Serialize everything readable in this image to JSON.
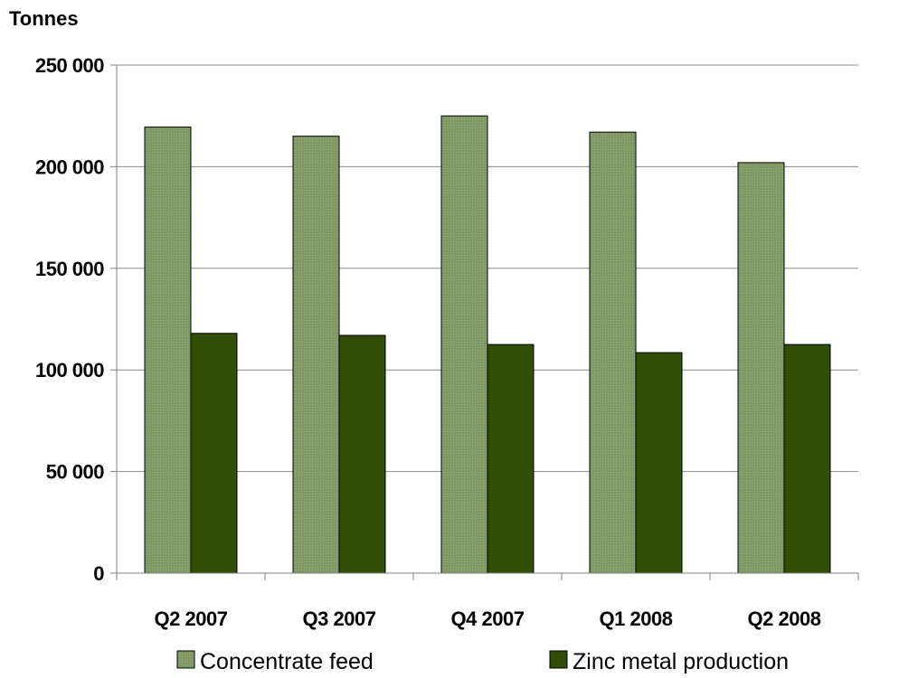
{
  "chart_data": {
    "type": "bar",
    "ylabel": "Tonnes",
    "categories": [
      "Q2 2007",
      "Q3 2007",
      "Q4 2007",
      "Q1 2008",
      "Q2 2008"
    ],
    "series": [
      {
        "name": "Concentrate feed",
        "values": [
          219500,
          215000,
          225000,
          217000,
          202000
        ],
        "color": "#7f9964"
      },
      {
        "name": "Zinc metal production",
        "values": [
          118000,
          117000,
          112500,
          108500,
          112500
        ],
        "color": "#324d05"
      }
    ],
    "ylim": [
      0,
      250000
    ],
    "yticks": [
      0,
      50000,
      100000,
      150000,
      200000,
      250000
    ],
    "ytick_labels": [
      "0",
      "50 000",
      "100 000",
      "150 000",
      "200 000",
      "250 000"
    ],
    "grid": true,
    "legend_position": "bottom"
  }
}
